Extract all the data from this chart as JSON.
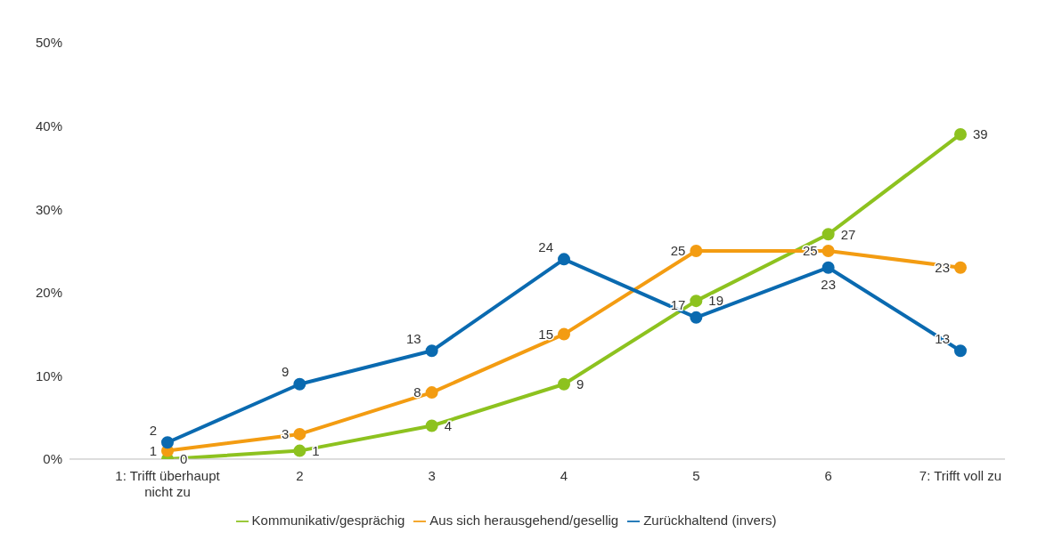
{
  "chart_data": {
    "type": "line",
    "categories": [
      "1: Trifft überhaupt nicht zu",
      "2",
      "3",
      "4",
      "5",
      "6",
      "7: Trifft voll zu"
    ],
    "series": [
      {
        "name": "Kommunikativ/gesprächig",
        "color": "#8dc21f",
        "values": [
          0,
          1,
          4,
          9,
          19,
          27,
          39
        ]
      },
      {
        "name": "Aus sich herausgehend/gesellig",
        "color": "#f39c12",
        "values": [
          1,
          3,
          8,
          15,
          25,
          25,
          23
        ]
      },
      {
        "name": "Zurückhaltend (invers)",
        "color": "#0a6ab0",
        "values": [
          2,
          9,
          13,
          24,
          17,
          23,
          13
        ]
      }
    ],
    "ylim": [
      0,
      50
    ],
    "yticks": [
      {
        "value": 0,
        "label": "0%"
      },
      {
        "value": 10,
        "label": "10%"
      },
      {
        "value": 20,
        "label": "20%"
      },
      {
        "value": 30,
        "label": "30%"
      },
      {
        "value": 40,
        "label": "40%"
      },
      {
        "value": 50,
        "label": "50%"
      }
    ],
    "grid": false,
    "legend": "bottom",
    "marker": "circle",
    "line_style": "solid",
    "data_labels": true
  }
}
